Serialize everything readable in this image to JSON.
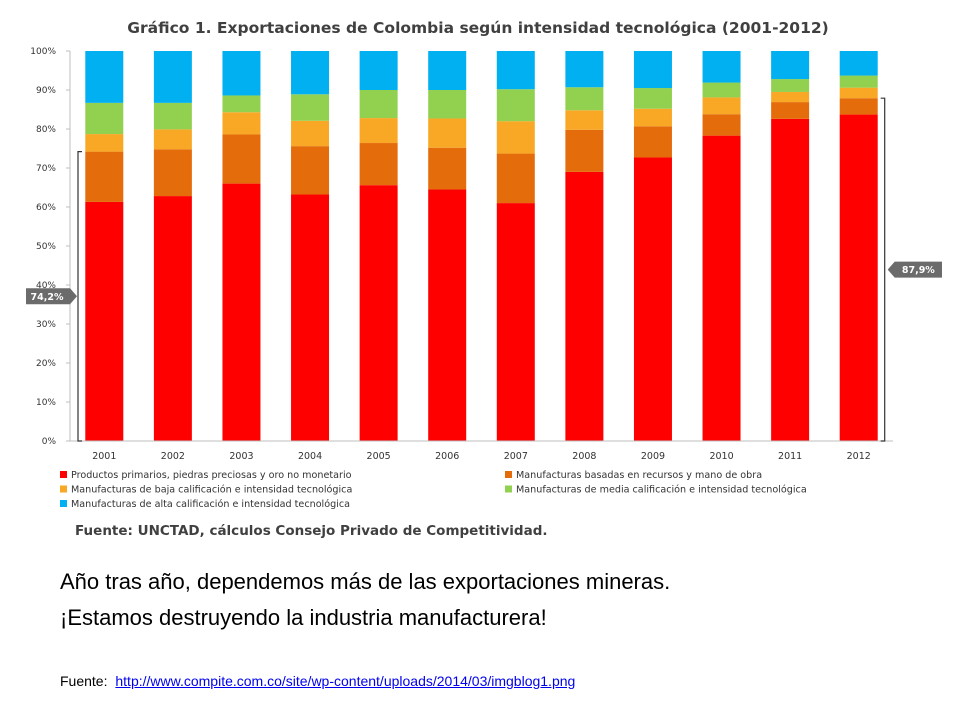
{
  "chart_data": {
    "type": "bar",
    "stacked": true,
    "title": "Gráfico 1. Exportaciones de Colombia según intensidad tecnológica (2001-2012)",
    "categories": [
      "2001",
      "2002",
      "2003",
      "2004",
      "2005",
      "2006",
      "2007",
      "2008",
      "2009",
      "2010",
      "2011",
      "2012"
    ],
    "ylim": [
      0,
      100
    ],
    "yticks": [
      "0%",
      "10%",
      "20%",
      "30%",
      "40%",
      "50%",
      "60%",
      "70%",
      "80%",
      "90%",
      "100%"
    ],
    "series": [
      {
        "name": "Productos primarios, piedras preciosas y oro no monetario",
        "color": "#ff0000",
        "values": [
          61.3,
          62.8,
          66.0,
          63.2,
          65.6,
          64.5,
          61.0,
          69.0,
          72.7,
          78.3,
          82.6,
          83.7
        ]
      },
      {
        "name": "Manufacturas basadas en recursos y mano de obra",
        "color": "#e46c0a",
        "values": [
          12.9,
          12.0,
          12.6,
          12.4,
          10.8,
          10.7,
          12.7,
          10.8,
          8.0,
          5.5,
          4.3,
          4.2
        ]
      },
      {
        "name": "Manufacturas de baja calificación e intensidad tecnológica",
        "color": "#f9a825",
        "values": [
          4.5,
          5.1,
          5.7,
          6.5,
          6.4,
          7.5,
          8.3,
          5.0,
          4.5,
          4.3,
          2.6,
          2.7
        ]
      },
      {
        "name": "Manufacturas de media calificación e intensidad tecnológica",
        "color": "#92d050",
        "values": [
          8.0,
          6.8,
          4.3,
          6.8,
          7.2,
          7.3,
          8.2,
          5.9,
          5.3,
          3.8,
          3.3,
          3.1
        ]
      },
      {
        "name": "Manufacturas de alta calificación  e intensidad tecnológica",
        "color": "#00b0f0",
        "values": [
          13.3,
          13.3,
          11.4,
          11.1,
          10.0,
          10.0,
          9.8,
          9.3,
          9.5,
          8.1,
          7.2,
          6.3
        ]
      }
    ],
    "annotations": [
      {
        "text": "74,2%",
        "category": "2001",
        "value": 74.2
      },
      {
        "text": "87,9%",
        "category": "2012",
        "value": 87.9
      }
    ],
    "source": "Fuente: UNCTAD, cálculos Consejo Privado de Competitividad.",
    "grid": false,
    "legend_position": "bottom"
  },
  "text": {
    "line1": "Año tras año, dependemos  más de las exportaciones mineras.",
    "line2": "¡Estamos destruyendo  la industria manufacturera!",
    "fuente_label": "Fuente:",
    "fuente_link": "http://www.compite.com.co/site/wp-content/uploads/2014/03/imgblog1.png"
  }
}
